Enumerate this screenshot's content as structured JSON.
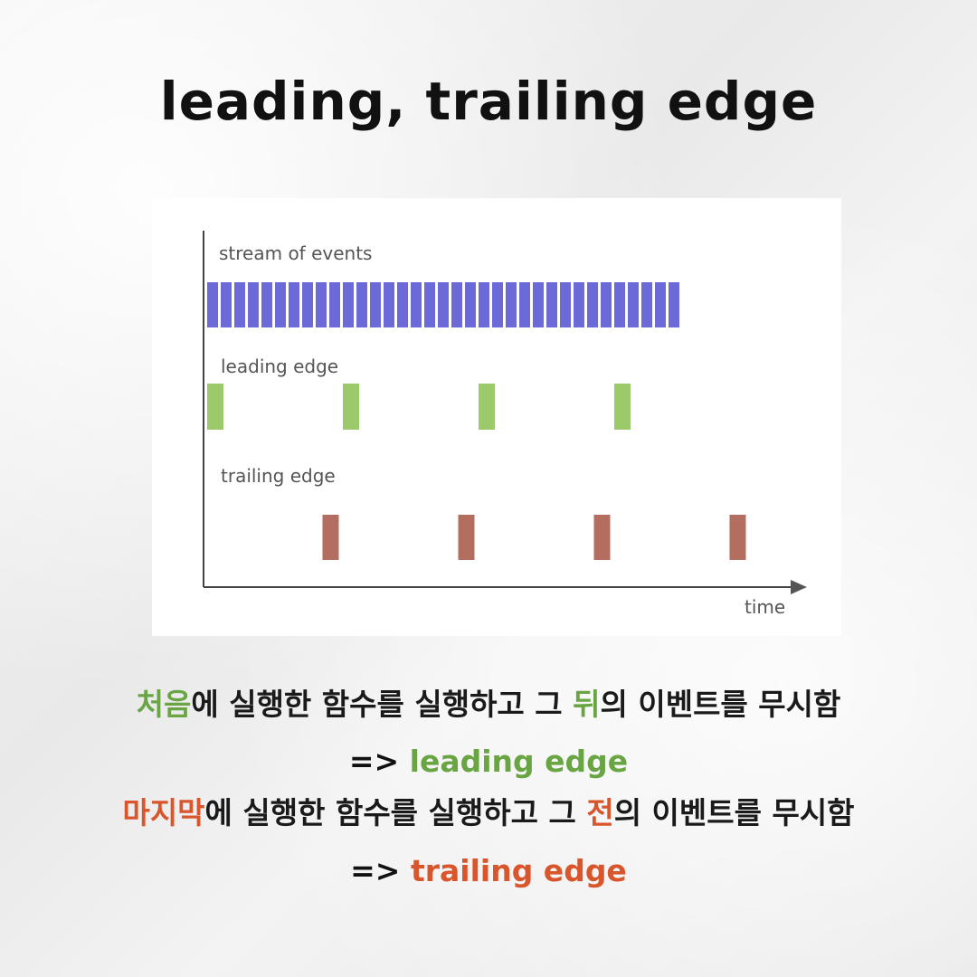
{
  "title": "leading, trailing edge",
  "diagram": {
    "rows": [
      {
        "label": "stream of events",
        "color": "#6c69d8",
        "positions": [
          0,
          1,
          2,
          3,
          4,
          5,
          6,
          7,
          8,
          9,
          10,
          11,
          12,
          13,
          14,
          15,
          16,
          17,
          18,
          19,
          20,
          21,
          22,
          23,
          24,
          25,
          26,
          27,
          28,
          29,
          30,
          31,
          32,
          33,
          34
        ]
      },
      {
        "label": "leading edge",
        "color": "#9cc96a",
        "positions": [
          0,
          10,
          20,
          30
        ]
      },
      {
        "label": "trailing edge",
        "color": "#b46e5f",
        "positions": [
          8.5,
          18.5,
          28.5,
          38.5
        ]
      }
    ],
    "axis_label": "time"
  },
  "text": {
    "line1": {
      "part1": "처음",
      "part2": "에 실행한 함수를 실행하고 그 ",
      "part3": "뒤",
      "part4": "의 이벤트를 무시함"
    },
    "line2": {
      "arrow": "=> ",
      "term": "leading edge"
    },
    "line3": {
      "part1": "마지막",
      "part2": "에 실행한 함수를 실행하고 그 ",
      "part3": "전",
      "part4": "의 이벤트를 무시함"
    },
    "line4": {
      "arrow": "=> ",
      "term": "trailing edge"
    }
  }
}
